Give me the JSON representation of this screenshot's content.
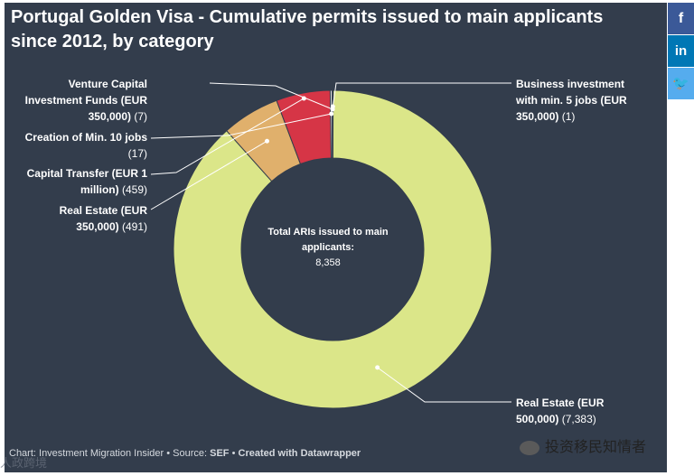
{
  "title": "Portugal Golden Visa - Cumulative permits issued to main applicants since 2012, by category",
  "center": {
    "label": "Total ARIs issued to main applicants:",
    "value": "8,358"
  },
  "labels": {
    "venture": {
      "name": "Venture Capital Investment Funds (EUR 350,000)",
      "value": "(7)"
    },
    "jobs10": {
      "name": "Creation of Min. 10 jobs",
      "value": "(17)"
    },
    "capital": {
      "name": "Capital Transfer (EUR 1 million)",
      "value": "(459)"
    },
    "re350": {
      "name": "Real Estate (EUR 350,000)",
      "value": "(491)"
    },
    "business": {
      "name": "Business investment with min. 5 jobs (EUR 350,000)",
      "value": "(1)"
    },
    "re500": {
      "name": "Real Estate (EUR 500,000)",
      "value": "(7,383)"
    }
  },
  "footer": {
    "prefix": "Chart: Investment Migration Insider • Source: ",
    "source": "SEF",
    "sep": " • ",
    "created": "Created with Datawrapper"
  },
  "social": {
    "facebook": "f",
    "linkedin": "in",
    "twitter": "🐦"
  },
  "watermark": {
    "wechat": "投资移民知情者",
    "corner": "人政跨境"
  },
  "colors": {
    "background": "#333d4c",
    "re500": "#dbe689",
    "re350": "#e0b06c",
    "capital": "#d63546",
    "jobs10": "#e3e3e3",
    "venture": "#ffffff",
    "business": "#ffffff",
    "facebook": "#3b5998",
    "linkedin": "#0077b5",
    "twitter": "#55acee"
  },
  "chart_data": {
    "type": "pie",
    "style": "donut",
    "title": "Portugal Golden Visa - Cumulative permits issued to main applicants since 2012, by category",
    "categories": [
      "Business investment with min. 5 jobs (EUR 350,000)",
      "Real Estate (EUR 500,000)",
      "Real Estate (EUR 350,000)",
      "Capital Transfer (EUR 1 million)",
      "Creation of Min. 10 jobs",
      "Venture Capital Investment Funds (EUR 350,000)"
    ],
    "values": [
      1,
      7383,
      491,
      459,
      17,
      7
    ],
    "total": 8358
  }
}
